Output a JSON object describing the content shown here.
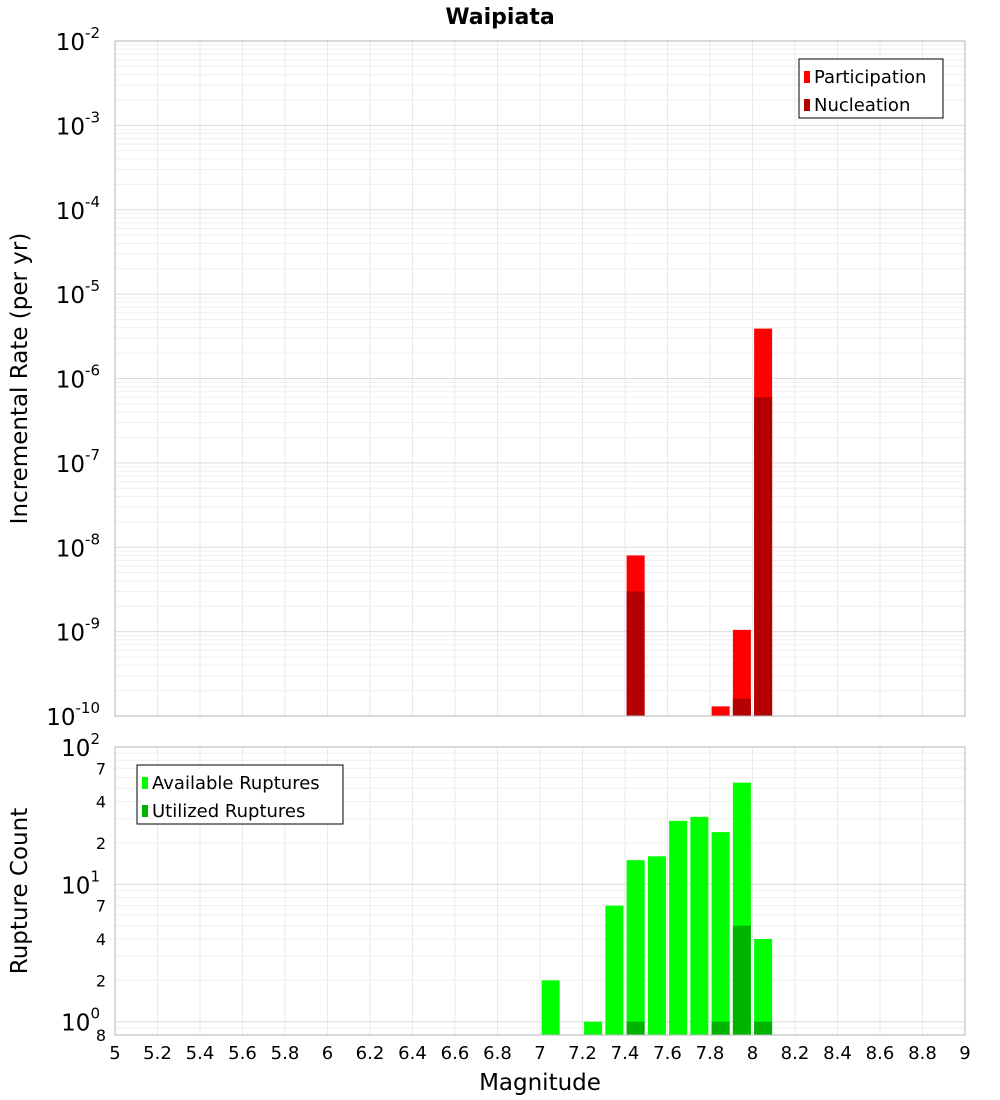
{
  "chart_data": {
    "type": "bar",
    "title": "Waipiata",
    "xlabel": "Magnitude",
    "xlim": [
      5,
      9
    ],
    "x_ticks": [
      "5",
      "5.2",
      "5.4",
      "5.6",
      "5.8",
      "6",
      "6.2",
      "6.4",
      "6.6",
      "6.8",
      "7",
      "7.2",
      "7.4",
      "7.6",
      "7.8",
      "8",
      "8.2",
      "8.4",
      "8.6",
      "8.8",
      "9"
    ],
    "grid": true,
    "panels": [
      {
        "id": "rate",
        "ylabel": "Incremental Rate (per yr)",
        "y_scale": "log",
        "ylim": [
          1e-10,
          0.01
        ],
        "y_major_ticks": [
          {
            "base": "10",
            "exp": "-10",
            "value": 1e-10
          },
          {
            "base": "10",
            "exp": "-9",
            "value": 1e-09
          },
          {
            "base": "10",
            "exp": "-8",
            "value": 1e-08
          },
          {
            "base": "10",
            "exp": "-7",
            "value": 1e-07
          },
          {
            "base": "10",
            "exp": "-6",
            "value": 1e-06
          },
          {
            "base": "10",
            "exp": "-5",
            "value": 1e-05
          },
          {
            "base": "10",
            "exp": "-4",
            "value": 0.0001
          },
          {
            "base": "10",
            "exp": "-3",
            "value": 0.001
          },
          {
            "base": "10",
            "exp": "-2",
            "value": 0.01
          }
        ],
        "legend_position": "top-right",
        "series": [
          {
            "name": "Participation",
            "color": "#ff0000",
            "points": [
              {
                "x": 7.45,
                "y": 8e-09
              },
              {
                "x": 7.85,
                "y": 1.3e-10
              },
              {
                "x": 7.95,
                "y": 1.05e-09
              },
              {
                "x": 8.05,
                "y": 3.9e-06
              }
            ]
          },
          {
            "name": "Nucleation",
            "color": "#b30000",
            "points": [
              {
                "x": 7.45,
                "y": 3e-09
              },
              {
                "x": 7.95,
                "y": 1.6e-10
              },
              {
                "x": 8.05,
                "y": 6e-07
              }
            ]
          }
        ]
      },
      {
        "id": "count",
        "ylabel": "Rupture Count",
        "y_scale": "log",
        "ylim": [
          0.8,
          100
        ],
        "y_major_ticks": [
          {
            "base": "10",
            "exp": "0",
            "value": 1
          },
          {
            "base": "10",
            "exp": "1",
            "value": 10
          },
          {
            "base": "10",
            "exp": "2",
            "value": 100
          }
        ],
        "y_minor_ticks": [
          {
            "label": "8",
            "value": 0.8
          },
          {
            "label": "2",
            "value": 2
          },
          {
            "label": "4",
            "value": 4
          },
          {
            "label": "7",
            "value": 7
          },
          {
            "label": "2",
            "value": 20
          },
          {
            "label": "4",
            "value": 40
          },
          {
            "label": "7",
            "value": 70
          }
        ],
        "legend_position": "top-left",
        "series": [
          {
            "name": "Available Ruptures",
            "color": "#00ff00",
            "points": [
              {
                "x": 7.05,
                "y": 2
              },
              {
                "x": 7.25,
                "y": 1
              },
              {
                "x": 7.35,
                "y": 7
              },
              {
                "x": 7.45,
                "y": 15
              },
              {
                "x": 7.55,
                "y": 16
              },
              {
                "x": 7.65,
                "y": 29
              },
              {
                "x": 7.75,
                "y": 31
              },
              {
                "x": 7.85,
                "y": 24
              },
              {
                "x": 7.95,
                "y": 55
              },
              {
                "x": 8.05,
                "y": 4
              }
            ]
          },
          {
            "name": "Utilized Ruptures",
            "color": "#00b300",
            "points": [
              {
                "x": 7.45,
                "y": 1
              },
              {
                "x": 7.85,
                "y": 1
              },
              {
                "x": 7.95,
                "y": 5
              },
              {
                "x": 8.05,
                "y": 1
              }
            ]
          }
        ]
      }
    ]
  }
}
